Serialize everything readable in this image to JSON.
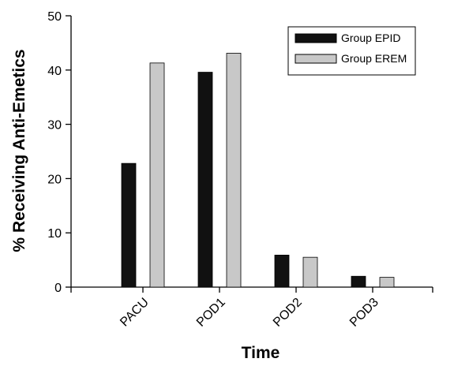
{
  "chart_data": {
    "type": "bar",
    "categories": [
      "PACU",
      "POD1",
      "POD2",
      "POD3"
    ],
    "series": [
      {
        "name": "Group EPID",
        "values": [
          22.8,
          39.6,
          5.9,
          2.0
        ],
        "color": "#111111"
      },
      {
        "name": "Group EREM",
        "values": [
          41.3,
          43.1,
          5.5,
          1.8
        ],
        "color": "#c8c8c8"
      }
    ],
    "xlabel": "Time",
    "ylabel": "% Receiving Anti-Emetics",
    "ylim": [
      0,
      50
    ],
    "yticks": [
      0,
      10,
      20,
      30,
      40,
      50
    ],
    "grid": false,
    "legend_position": "top-right"
  }
}
